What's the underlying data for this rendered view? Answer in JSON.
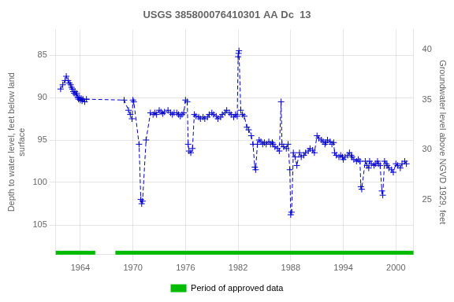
{
  "chart_data": {
    "type": "line",
    "title": "USGS 385800076410301 AA Dc  13",
    "ylabel": "Depth to water level, feet below land\nsurface",
    "y2label": "Groundwater level above NGVD 1929, feet",
    "xlim": [
      1961.2,
      2002.0
    ],
    "xticks": [
      1964,
      1970,
      1976,
      1982,
      1988,
      1994,
      2000
    ],
    "ylim": [
      108.5,
      82.0
    ],
    "yticks": [
      85,
      90,
      95,
      100,
      105
    ],
    "y2lim": [
      19.5,
      42.0
    ],
    "y2ticks": [
      25,
      30,
      35,
      40
    ],
    "grid": true,
    "legend": "bottom",
    "approved_periods": {
      "name": "Period of approved data",
      "color": "#00bb00",
      "ranges": [
        [
          1961.2,
          1965.7
        ],
        [
          1968.0,
          2002.0
        ]
      ]
    },
    "x": [
      1961.75,
      1962.0,
      1962.25,
      1962.4,
      1962.6,
      1962.75,
      1962.9,
      1963.0,
      1963.1,
      1963.2,
      1963.3,
      1963.4,
      1963.5,
      1963.6,
      1963.7,
      1963.8,
      1963.9,
      1964.0,
      1964.1,
      1964.2,
      1964.3,
      1964.5,
      1964.7,
      1969.0,
      1969.5,
      1969.7,
      1969.9,
      1970.0,
      1970.1,
      1970.7,
      1970.9,
      1971.0,
      1971.1,
      1971.5,
      1972.0,
      1972.3,
      1972.5,
      1972.7,
      1973.0,
      1973.2,
      1973.4,
      1973.6,
      1974.0,
      1974.3,
      1974.5,
      1974.7,
      1975.0,
      1975.2,
      1975.4,
      1975.6,
      1975.8,
      1976.0,
      1976.2,
      1976.3,
      1976.4,
      1976.6,
      1976.8,
      1977.0,
      1977.2,
      1977.5,
      1977.7,
      1978.0,
      1978.2,
      1978.5,
      1978.7,
      1979.0,
      1979.2,
      1979.5,
      1979.7,
      1980.0,
      1980.2,
      1980.5,
      1980.7,
      1981.0,
      1981.2,
      1981.5,
      1981.7,
      1981.9,
      1982.0,
      1982.05,
      1982.1,
      1982.3,
      1982.5,
      1982.7,
      1983.0,
      1983.2,
      1983.5,
      1983.7,
      1983.9,
      1984.0,
      1984.2,
      1984.4,
      1984.6,
      1984.8,
      1985.0,
      1985.2,
      1985.5,
      1985.7,
      1985.9,
      1986.0,
      1986.2,
      1986.5,
      1986.7,
      1986.9,
      1987.0,
      1987.2,
      1987.5,
      1987.7,
      1987.9,
      1988.0,
      1988.1,
      1988.3,
      1988.5,
      1988.7,
      1989.0,
      1989.2,
      1989.5,
      1989.7,
      1990.0,
      1990.2,
      1990.5,
      1990.7,
      1991.0,
      1991.2,
      1991.5,
      1991.7,
      1991.9,
      1992.0,
      1992.2,
      1992.5,
      1992.7,
      1992.9,
      1993.0,
      1993.2,
      1993.5,
      1993.7,
      1993.9,
      1994.0,
      1994.2,
      1994.5,
      1994.7,
      1994.9,
      1995.0,
      1995.2,
      1995.5,
      1995.7,
      1995.9,
      1996.0,
      1996.1,
      1996.5,
      1996.7,
      1996.9,
      1997.0,
      1997.2,
      1997.5,
      1997.7,
      1997.9,
      1998.0,
      1998.2,
      1998.4,
      1998.5,
      1998.7,
      1998.9,
      1999.0,
      1999.2,
      1999.5,
      1999.7,
      2000.0,
      2000.2,
      2000.5,
      2000.7,
      2001.0,
      2001.2
    ],
    "series": [
      {
        "color": "#0000cc",
        "marker": "cross",
        "line_style": "dashed",
        "values": [
          89.0,
          88.5,
          88.0,
          87.5,
          88.0,
          88.3,
          88.5,
          88.8,
          89.0,
          89.3,
          89.5,
          89.3,
          89.7,
          89.5,
          90.0,
          90.2,
          90.0,
          90.3,
          90.1,
          90.4,
          90.2,
          90.5,
          90.2,
          90.3,
          91.5,
          92.0,
          92.5,
          90.3,
          90.5,
          95.5,
          102.0,
          102.5,
          102.2,
          95.0,
          91.8,
          92.0,
          91.8,
          92.0,
          91.5,
          91.7,
          91.9,
          91.7,
          91.5,
          91.8,
          92.0,
          91.8,
          91.8,
          92.0,
          92.2,
          92.0,
          91.8,
          90.3,
          90.5,
          95.5,
          96.3,
          96.5,
          96.0,
          92.0,
          92.2,
          92.3,
          92.5,
          92.3,
          92.5,
          92.3,
          92.0,
          91.8,
          92.0,
          92.2,
          92.5,
          92.3,
          92.0,
          91.8,
          91.5,
          91.8,
          92.0,
          92.3,
          92.0,
          92.2,
          85.2,
          84.8,
          84.5,
          91.5,
          92.0,
          92.2,
          93.5,
          93.8,
          94.5,
          95.5,
          98.2,
          98.5,
          95.5,
          95.0,
          95.2,
          95.5,
          95.3,
          95.5,
          95.2,
          95.5,
          95.3,
          95.5,
          95.8,
          96.0,
          96.3,
          90.5,
          95.5,
          95.8,
          96.0,
          95.5,
          98.5,
          103.8,
          103.5,
          96.5,
          97.0,
          98.0,
          96.5,
          97.0,
          96.8,
          96.5,
          96.3,
          96.0,
          96.2,
          96.5,
          94.5,
          94.8,
          95.0,
          95.2,
          95.5,
          95.3,
          95.0,
          95.2,
          95.5,
          95.3,
          96.5,
          96.8,
          97.0,
          96.8,
          97.0,
          97.3,
          97.0,
          96.8,
          96.5,
          96.8,
          97.0,
          97.3,
          97.5,
          97.3,
          97.5,
          100.5,
          100.8,
          97.5,
          98.0,
          98.3,
          97.5,
          97.8,
          98.0,
          97.8,
          97.5,
          97.8,
          98.0,
          101.0,
          101.5,
          97.5,
          97.8,
          98.0,
          98.3,
          98.5,
          98.8,
          97.8,
          98.0,
          98.3,
          97.8,
          97.5,
          97.8
        ]
      }
    ]
  }
}
